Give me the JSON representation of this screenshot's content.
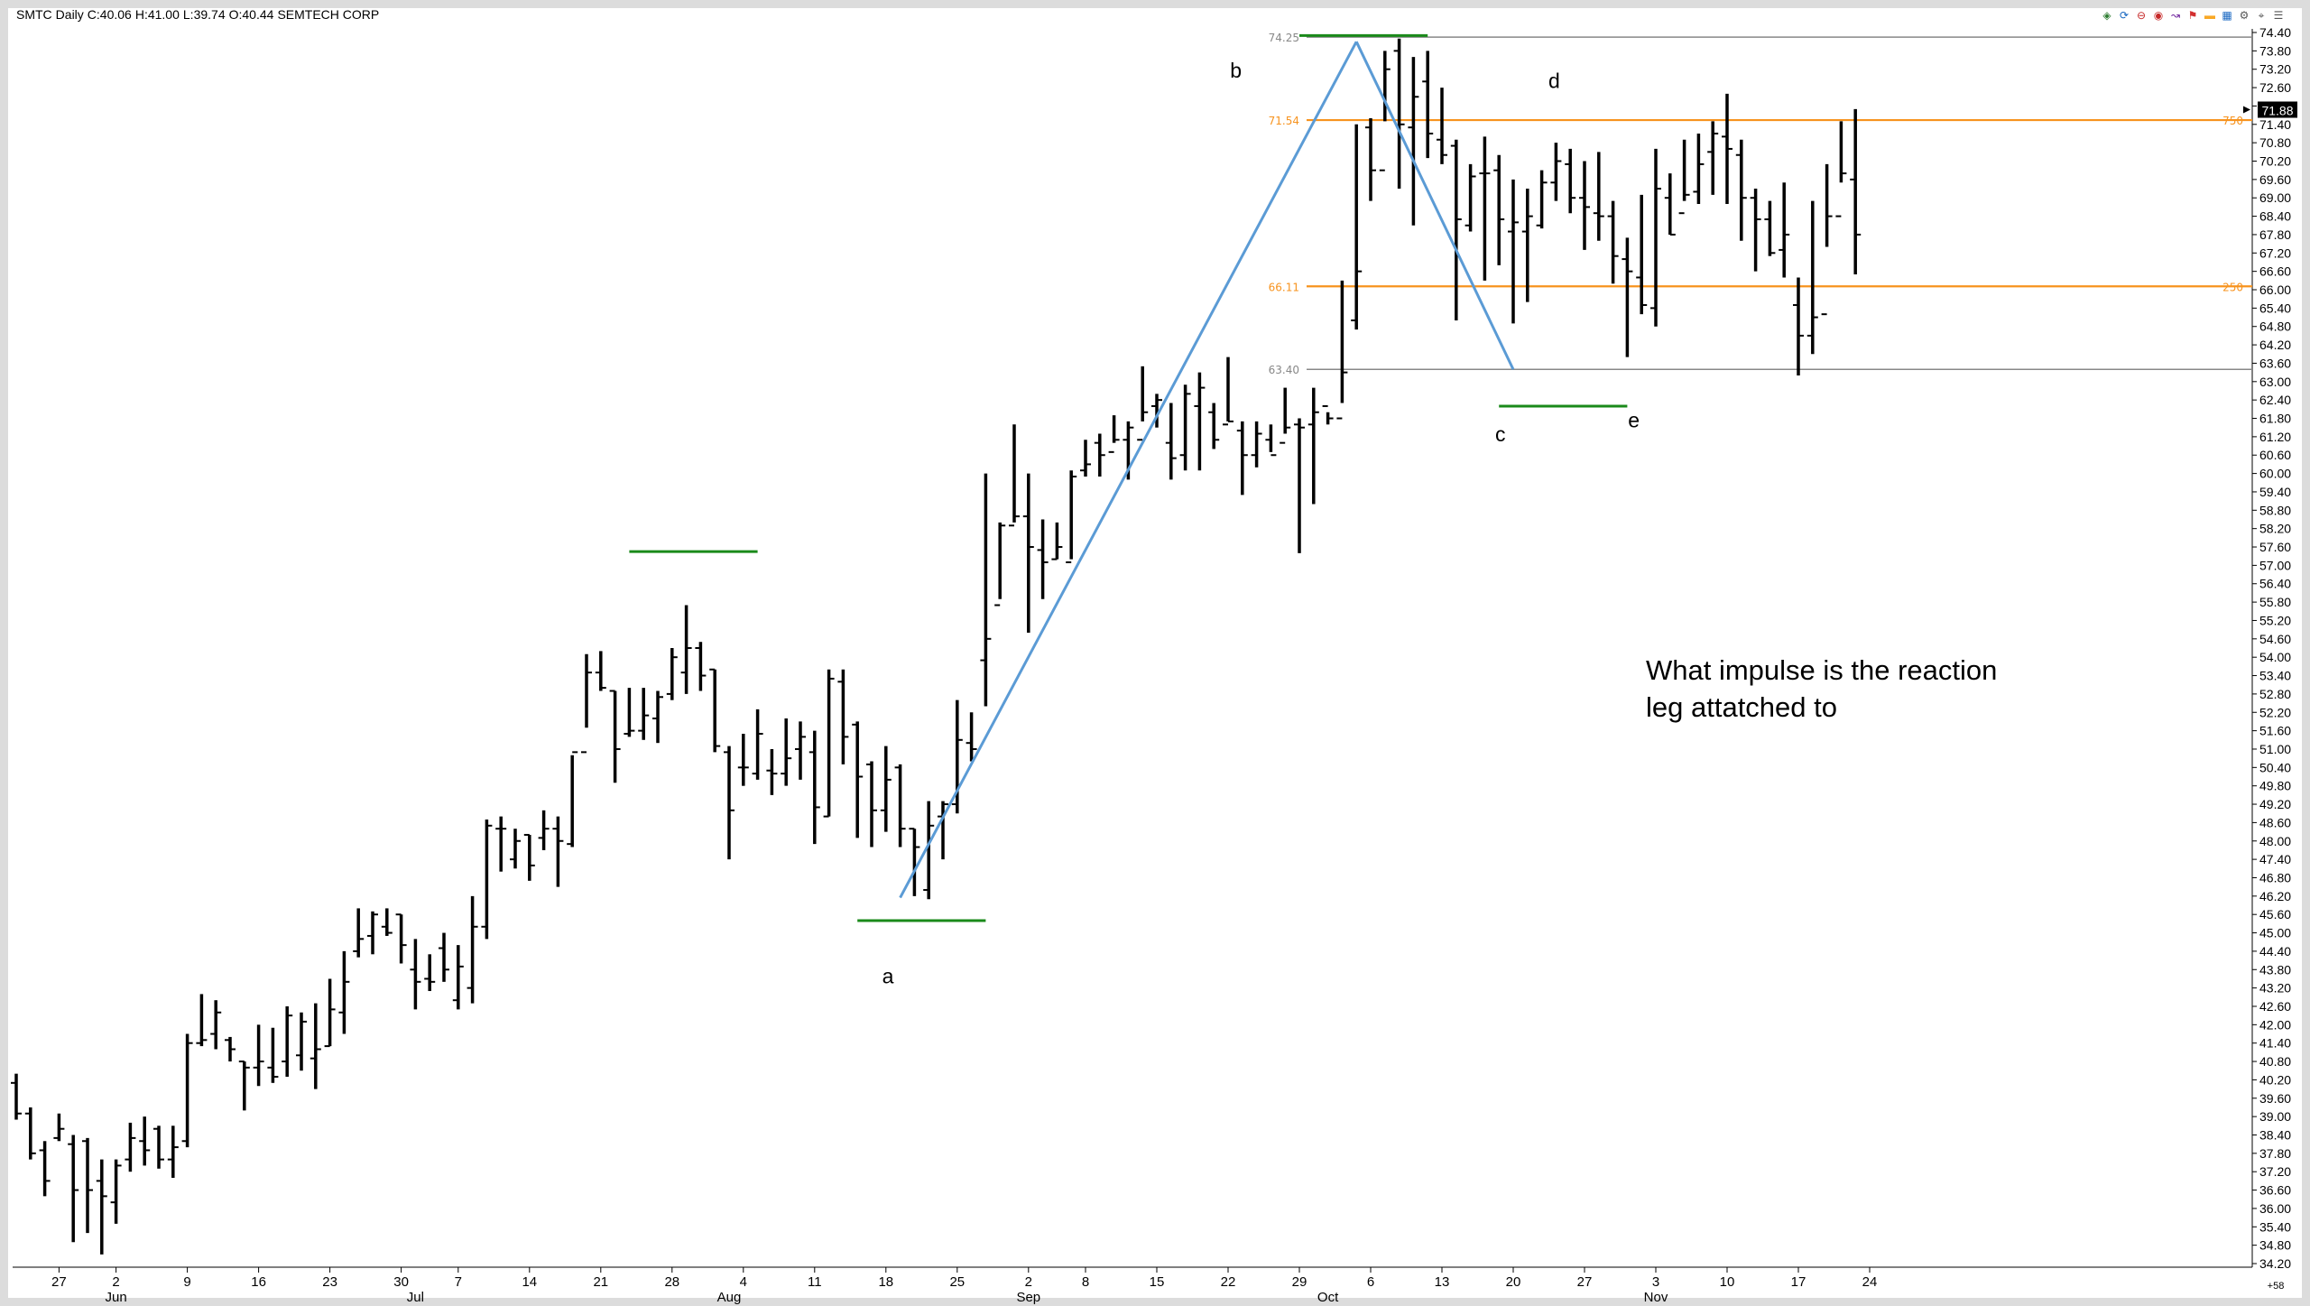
{
  "header": {
    "symbol": "SMTC",
    "period": "Daily",
    "close": "C:40.06",
    "high": "H:41.00",
    "low": "L:39.74",
    "open": "O:40.44",
    "company": "SEMTECH CORP"
  },
  "toolbar": {
    "icons": [
      "chart-type-icon",
      "cycle-icon",
      "remove-icon",
      "stop-icon",
      "draw-icon",
      "flag-icon",
      "highlight-icon",
      "grid-icon",
      "settings-icon",
      "pin-icon",
      "more-icon"
    ]
  },
  "annotation": {
    "line1": "What impulse is the reaction",
    "line2": "leg attatched to"
  },
  "price_tag": "71.88",
  "small_corner_label": "+58",
  "levels": {
    "top": {
      "label": "74.25",
      "value": 74.25,
      "color": "#888888"
    },
    "upper_fib": {
      "label": "71.54",
      "value": 71.54,
      "right_label": "750",
      "color": "#f7931e"
    },
    "lower_fib": {
      "label": "66.11",
      "value": 66.11,
      "right_label": "250",
      "color": "#f7931e"
    },
    "bottom": {
      "label": "63.40",
      "value": 63.4,
      "color": "#888888"
    }
  },
  "chart_data": {
    "type": "ohlc",
    "colors": {
      "bars": "#000000",
      "zigzag": "#5b9bd5",
      "support_resistance": "#1a8a1a",
      "fib": "#f7931e"
    },
    "ylim": [
      34.2,
      74.4
    ],
    "yticks": [
      "74.40",
      "73.80",
      "73.20",
      "72.60",
      "72.00",
      "71.40",
      "70.80",
      "70.20",
      "69.60",
      "69.00",
      "68.40",
      "67.80",
      "67.20",
      "66.60",
      "66.00",
      "65.40",
      "64.80",
      "64.20",
      "63.60",
      "63.00",
      "62.40",
      "61.80",
      "61.20",
      "60.60",
      "60.00",
      "59.40",
      "58.80",
      "58.20",
      "57.60",
      "57.00",
      "56.40",
      "55.80",
      "55.20",
      "54.60",
      "54.00",
      "53.40",
      "52.80",
      "52.20",
      "51.60",
      "51.00",
      "50.40",
      "49.80",
      "49.20",
      "48.60",
      "48.00",
      "47.40",
      "46.80",
      "46.20",
      "45.60",
      "45.00",
      "44.40",
      "43.80",
      "43.20",
      "42.60",
      "42.00",
      "41.40",
      "40.80",
      "40.20",
      "39.60",
      "39.00",
      "38.40",
      "37.80",
      "37.20",
      "36.60",
      "36.00",
      "35.40",
      "34.80",
      "34.20"
    ],
    "xticks": [
      {
        "label": "27",
        "i": 3
      },
      {
        "label": "2",
        "i": 7
      },
      {
        "label": "9",
        "i": 12
      },
      {
        "label": "16",
        "i": 17
      },
      {
        "label": "23",
        "i": 22
      },
      {
        "label": "30",
        "i": 27
      },
      {
        "label": "7",
        "i": 31
      },
      {
        "label": "14",
        "i": 36
      },
      {
        "label": "21",
        "i": 41
      },
      {
        "label": "28",
        "i": 46
      },
      {
        "label": "4",
        "i": 51
      },
      {
        "label": "11",
        "i": 56
      },
      {
        "label": "18",
        "i": 61
      },
      {
        "label": "25",
        "i": 66
      },
      {
        "label": "2",
        "i": 71
      },
      {
        "label": "8",
        "i": 75
      },
      {
        "label": "15",
        "i": 80
      },
      {
        "label": "22",
        "i": 85
      },
      {
        "label": "29",
        "i": 90
      },
      {
        "label": "6",
        "i": 95
      },
      {
        "label": "13",
        "i": 100
      },
      {
        "label": "20",
        "i": 105
      },
      {
        "label": "27",
        "i": 110
      },
      {
        "label": "3",
        "i": 115
      },
      {
        "label": "10",
        "i": 120
      },
      {
        "label": "17",
        "i": 125
      },
      {
        "label": "24",
        "i": 130
      }
    ],
    "months": [
      {
        "label": "Jun",
        "i": 7
      },
      {
        "label": "Jul",
        "i": 28
      },
      {
        "label": "Aug",
        "i": 50
      },
      {
        "label": "Sep",
        "i": 71
      },
      {
        "label": "Oct",
        "i": 92
      },
      {
        "label": "Nov",
        "i": 115
      }
    ],
    "bars": [
      [
        40.1,
        40.4,
        38.9,
        39.1
      ],
      [
        39.1,
        39.3,
        37.6,
        37.8
      ],
      [
        37.9,
        38.2,
        36.4,
        36.9
      ],
      [
        38.3,
        39.1,
        38.2,
        38.6
      ],
      [
        38.1,
        38.4,
        34.9,
        36.6
      ],
      [
        38.2,
        38.3,
        35.2,
        36.6
      ],
      [
        36.9,
        37.6,
        34.5,
        36.4
      ],
      [
        36.2,
        37.6,
        35.5,
        37.4
      ],
      [
        37.6,
        38.8,
        37.2,
        38.3
      ],
      [
        38.2,
        39.0,
        37.4,
        37.9
      ],
      [
        38.6,
        38.7,
        37.3,
        37.6
      ],
      [
        37.6,
        38.7,
        37.0,
        38.0
      ],
      [
        38.2,
        41.7,
        38.0,
        41.4
      ],
      [
        41.4,
        43.0,
        41.3,
        41.5
      ],
      [
        41.7,
        42.8,
        41.2,
        42.4
      ],
      [
        41.5,
        41.6,
        40.8,
        41.2
      ],
      [
        40.8,
        40.8,
        39.2,
        40.6
      ],
      [
        40.6,
        42.0,
        40.0,
        40.8
      ],
      [
        40.6,
        41.9,
        40.1,
        40.3
      ],
      [
        40.8,
        42.6,
        40.3,
        42.3
      ],
      [
        41.0,
        42.4,
        40.5,
        42.1
      ],
      [
        40.9,
        42.7,
        39.9,
        41.2
      ],
      [
        41.3,
        43.5,
        41.3,
        42.5
      ],
      [
        42.4,
        44.4,
        41.7,
        43.4
      ],
      [
        44.4,
        45.8,
        44.2,
        44.8
      ],
      [
        44.9,
        45.7,
        44.3,
        45.6
      ],
      [
        45.2,
        45.8,
        44.9,
        45.0
      ],
      [
        45.6,
        45.6,
        44.0,
        44.6
      ],
      [
        43.8,
        44.8,
        42.5,
        43.4
      ],
      [
        43.5,
        44.3,
        43.1,
        43.4
      ],
      [
        44.5,
        45.0,
        43.4,
        43.8
      ],
      [
        42.8,
        44.6,
        42.5,
        43.9
      ],
      [
        43.2,
        46.2,
        42.7,
        45.2
      ],
      [
        45.2,
        48.7,
        44.8,
        48.5
      ],
      [
        48.4,
        48.8,
        47.0,
        48.4
      ],
      [
        47.4,
        48.4,
        47.1,
        48.0
      ],
      [
        48.2,
        48.2,
        46.7,
        47.2
      ],
      [
        48.1,
        49.0,
        47.7,
        48.4
      ],
      [
        48.4,
        48.8,
        46.5,
        48.0
      ],
      [
        47.9,
        50.8,
        47.8,
        50.9
      ],
      [
        50.9,
        54.1,
        51.7,
        53.5
      ],
      [
        53.5,
        54.2,
        52.9,
        53.0
      ],
      [
        52.9,
        52.9,
        49.9,
        51.0
      ],
      [
        51.5,
        53.0,
        51.4,
        51.6
      ],
      [
        51.6,
        53.0,
        51.3,
        52.1
      ],
      [
        52.0,
        52.9,
        51.2,
        52.7
      ],
      [
        52.8,
        54.3,
        52.6,
        54.0
      ],
      [
        53.5,
        55.7,
        52.8,
        54.3
      ],
      [
        54.3,
        54.5,
        52.9,
        53.4
      ],
      [
        53.6,
        53.6,
        50.9,
        51.1
      ],
      [
        50.9,
        51.1,
        47.4,
        49.0
      ],
      [
        50.4,
        51.5,
        49.8,
        50.4
      ],
      [
        50.2,
        52.3,
        50.0,
        51.5
      ],
      [
        50.3,
        51.0,
        49.5,
        50.2
      ],
      [
        50.2,
        52.0,
        49.8,
        50.7
      ],
      [
        51.0,
        51.9,
        50.0,
        51.4
      ],
      [
        50.9,
        51.6,
        47.9,
        49.1
      ],
      [
        48.8,
        53.6,
        48.8,
        53.3
      ],
      [
        53.2,
        53.6,
        50.5,
        51.4
      ],
      [
        51.8,
        51.9,
        48.1,
        50.1
      ],
      [
        50.5,
        50.6,
        47.8,
        49.0
      ],
      [
        49.0,
        51.1,
        48.3,
        50.0
      ],
      [
        50.4,
        50.5,
        47.8,
        48.4
      ],
      [
        48.4,
        48.4,
        46.2,
        47.8
      ],
      [
        46.4,
        49.3,
        46.1,
        48.5
      ],
      [
        48.8,
        49.3,
        47.4,
        49.2
      ],
      [
        49.2,
        52.6,
        48.9,
        51.3
      ],
      [
        51.2,
        52.2,
        50.6,
        51.0
      ],
      [
        53.9,
        60.0,
        52.4,
        54.6
      ],
      [
        55.7,
        58.4,
        55.9,
        58.3
      ],
      [
        58.3,
        61.6,
        58.4,
        58.6
      ],
      [
        58.6,
        60.0,
        54.8,
        57.6
      ],
      [
        57.5,
        58.5,
        55.9,
        57.1
      ],
      [
        57.2,
        58.4,
        57.2,
        57.6
      ],
      [
        57.1,
        60.1,
        57.2,
        59.9
      ],
      [
        60.1,
        61.1,
        59.9,
        60.3
      ],
      [
        61.0,
        61.3,
        59.9,
        60.6
      ],
      [
        60.7,
        61.9,
        61.0,
        61.1
      ],
      [
        61.1,
        61.7,
        59.8,
        61.5
      ],
      [
        61.1,
        63.5,
        61.7,
        62.0
      ],
      [
        62.2,
        62.6,
        61.5,
        62.4
      ],
      [
        61.0,
        62.3,
        59.8,
        60.5
      ],
      [
        60.6,
        62.9,
        60.1,
        62.6
      ],
      [
        62.2,
        63.3,
        60.1,
        62.8
      ],
      [
        62.0,
        62.3,
        60.8,
        61.1
      ],
      [
        61.6,
        63.8,
        61.7,
        61.7
      ],
      [
        61.4,
        61.7,
        59.3,
        60.6
      ],
      [
        60.6,
        61.7,
        60.2,
        61.3
      ],
      [
        61.1,
        61.6,
        60.7,
        60.6
      ],
      [
        61.0,
        62.8,
        61.3,
        61.5
      ],
      [
        61.6,
        61.8,
        57.4,
        61.5
      ],
      [
        61.6,
        62.8,
        59.0,
        62.0
      ],
      [
        62.2,
        62.0,
        61.6,
        61.8
      ],
      [
        61.8,
        66.3,
        62.3,
        63.3
      ],
      [
        65.0,
        71.4,
        64.7,
        66.6
      ],
      [
        71.3,
        71.6,
        68.9,
        69.9
      ],
      [
        69.9,
        73.8,
        71.5,
        73.2
      ],
      [
        73.8,
        74.2,
        69.3,
        71.4
      ],
      [
        71.3,
        73.6,
        68.1,
        72.3
      ],
      [
        72.8,
        73.8,
        70.3,
        71.1
      ],
      [
        70.9,
        72.6,
        70.1,
        70.4
      ],
      [
        70.7,
        70.9,
        65.0,
        68.3
      ],
      [
        68.1,
        70.1,
        67.9,
        69.7
      ],
      [
        69.8,
        71.0,
        66.3,
        69.8
      ],
      [
        69.9,
        70.4,
        66.8,
        68.3
      ],
      [
        67.9,
        69.6,
        64.9,
        68.2
      ],
      [
        67.9,
        69.3,
        65.6,
        68.4
      ],
      [
        68.1,
        69.9,
        68.0,
        69.5
      ],
      [
        69.5,
        70.8,
        68.9,
        70.2
      ],
      [
        70.1,
        70.6,
        68.5,
        69.0
      ],
      [
        69.0,
        70.2,
        67.3,
        68.7
      ],
      [
        68.5,
        70.5,
        67.6,
        68.4
      ],
      [
        68.4,
        68.9,
        66.2,
        67.1
      ],
      [
        67.0,
        67.7,
        63.8,
        66.6
      ],
      [
        66.4,
        69.1,
        65.2,
        65.5
      ],
      [
        65.4,
        70.6,
        64.8,
        69.3
      ],
      [
        69.0,
        69.8,
        67.8,
        67.8
      ],
      [
        68.5,
        70.9,
        68.9,
        69.1
      ],
      [
        69.2,
        71.1,
        68.8,
        70.1
      ],
      [
        70.5,
        71.5,
        69.1,
        71.1
      ],
      [
        71.0,
        72.4,
        68.8,
        70.6
      ],
      [
        70.4,
        70.9,
        67.6,
        69.0
      ],
      [
        69.0,
        69.3,
        66.6,
        68.3
      ],
      [
        68.3,
        68.9,
        67.1,
        67.2
      ],
      [
        67.3,
        69.5,
        66.4,
        67.8
      ],
      [
        65.5,
        66.4,
        63.2,
        64.5
      ],
      [
        64.5,
        68.9,
        63.9,
        65.1
      ],
      [
        65.2,
        70.1,
        67.4,
        68.4
      ],
      [
        68.4,
        71.5,
        69.5,
        69.8
      ],
      [
        69.6,
        71.9,
        66.5,
        67.8
      ]
    ],
    "zigzag": [
      {
        "label": "a",
        "i": 62,
        "v": 46.15
      },
      {
        "label": "b",
        "i": 94,
        "v": 74.1
      },
      {
        "label": "c",
        "i": 105,
        "v": 63.4
      },
      {
        "label": "d",
        "i": 110,
        "v": 72.0
      },
      {
        "label": "e",
        "i": 114,
        "v": 64.3
      }
    ],
    "green_lines": [
      {
        "from": 43,
        "to": 52,
        "v": 57.45
      },
      {
        "from": 59,
        "to": 68,
        "v": 45.4
      },
      {
        "from": 90,
        "to": 99,
        "v": 74.3
      },
      {
        "from": 104,
        "to": 113,
        "v": 62.2
      }
    ]
  }
}
